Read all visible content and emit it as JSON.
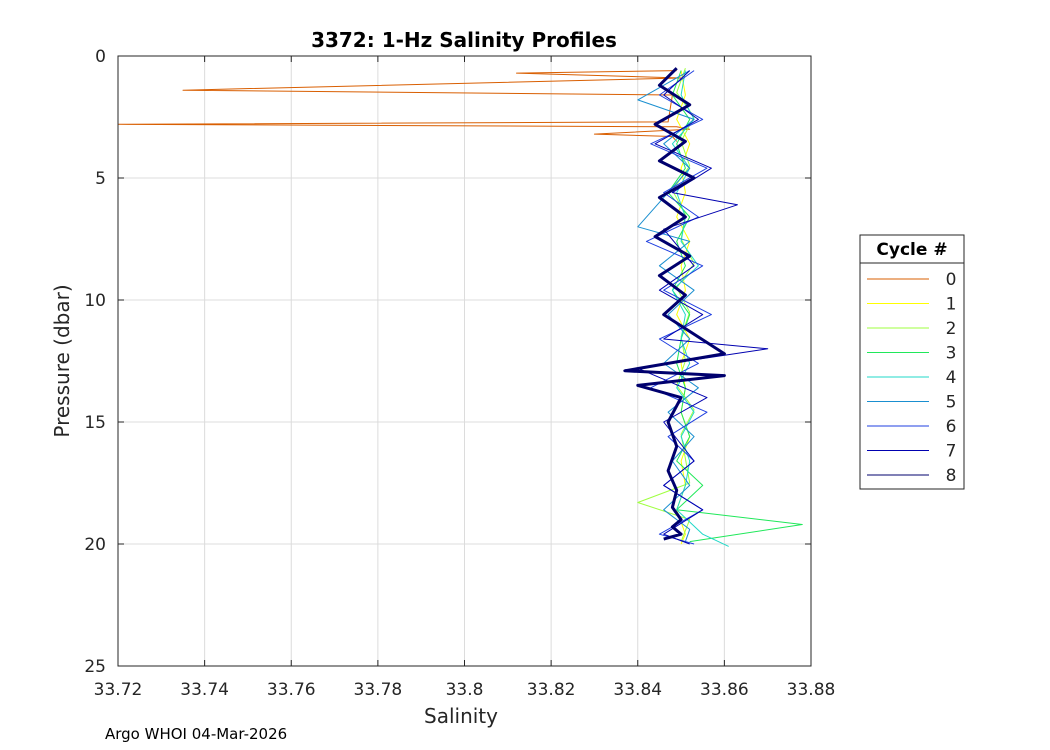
{
  "chart_data": {
    "type": "line",
    "title": "3372: 1-Hz Salinity Profiles",
    "xlabel": "Salinity",
    "ylabel": "Pressure (dbar)",
    "xlim": [
      33.72,
      33.88
    ],
    "ylim": [
      0,
      25
    ],
    "y_reversed": true,
    "grid": true,
    "x_ticks": [
      "33.72",
      "33.74",
      "33.76",
      "33.78",
      "33.8",
      "33.82",
      "33.84",
      "33.86",
      "33.88"
    ],
    "y_ticks": [
      "0",
      "5",
      "10",
      "15",
      "20",
      "25"
    ],
    "legend_title": "Cycle #",
    "legend_position": "outside-right",
    "series": [
      {
        "name": "0",
        "color": "#d95f02",
        "x": [
          33.849,
          33.812,
          33.85,
          33.735,
          33.848,
          33.847,
          33.72,
          33.849,
          33.852,
          33.83,
          33.848,
          33.849
        ],
        "y": [
          0.6,
          0.7,
          0.9,
          1.4,
          1.6,
          2.7,
          2.8,
          2.9,
          3.0,
          3.2,
          3.3,
          3.5
        ]
      },
      {
        "name": "1",
        "color": "#ffff00",
        "x": [
          33.85,
          33.851,
          33.849,
          33.852,
          33.85,
          33.851,
          33.849,
          33.852,
          33.85,
          33.851,
          33.849,
          33.852,
          33.85,
          33.851,
          33.85,
          33.852,
          33.85,
          33.851,
          33.849,
          33.851,
          33.85
        ],
        "y": [
          0.6,
          1.6,
          2.6,
          3.6,
          4.6,
          5.6,
          6.6,
          7.6,
          8.6,
          9.6,
          10.6,
          11.6,
          12.6,
          13.6,
          14.6,
          15.6,
          16.6,
          17.6,
          18.6,
          19.6,
          20.0
        ]
      },
      {
        "name": "2",
        "color": "#9fff3f",
        "x": [
          33.851,
          33.849,
          33.853,
          33.85,
          33.852,
          33.848,
          33.851,
          33.85,
          33.853,
          33.849,
          33.852,
          33.85,
          33.851,
          33.849,
          33.853,
          33.85,
          33.851,
          33.852,
          33.84,
          33.852,
          33.85
        ],
        "y": [
          0.5,
          1.5,
          2.5,
          3.5,
          4.5,
          5.5,
          6.5,
          7.5,
          8.5,
          9.5,
          10.5,
          11.5,
          12.5,
          13.5,
          14.5,
          15.5,
          16.5,
          17.5,
          18.3,
          19.0,
          19.9
        ]
      },
      {
        "name": "3",
        "color": "#20e85a",
        "x": [
          33.85,
          33.848,
          33.852,
          33.849,
          33.851,
          33.847,
          33.852,
          33.849,
          33.851,
          33.848,
          33.852,
          33.85,
          33.849,
          33.851,
          33.85,
          33.852,
          33.849,
          33.855,
          33.849,
          33.878,
          33.852
        ],
        "y": [
          0.6,
          1.6,
          2.6,
          3.6,
          4.6,
          5.6,
          6.6,
          7.6,
          8.6,
          9.6,
          10.6,
          11.6,
          12.6,
          13.6,
          14.6,
          15.6,
          16.6,
          17.6,
          18.6,
          19.2,
          19.9
        ]
      },
      {
        "name": "4",
        "color": "#20d8c8",
        "x": [
          33.851,
          33.85,
          33.853,
          33.848,
          33.852,
          33.849,
          33.851,
          33.85,
          33.854,
          33.848,
          33.851,
          33.85,
          33.852,
          33.849,
          33.853,
          33.85,
          33.852,
          33.851,
          33.849,
          33.855,
          33.861
        ],
        "y": [
          0.6,
          1.6,
          2.6,
          3.6,
          4.6,
          5.6,
          6.6,
          7.6,
          8.6,
          9.6,
          10.6,
          11.6,
          12.6,
          13.6,
          14.6,
          15.6,
          16.6,
          17.6,
          18.6,
          19.6,
          20.1
        ]
      },
      {
        "name": "5",
        "color": "#1a8fd0",
        "x": [
          33.852,
          33.84,
          33.853,
          33.846,
          33.852,
          33.847,
          33.84,
          33.852,
          33.845,
          33.853,
          33.847,
          33.852,
          33.846,
          33.854,
          33.847,
          33.853,
          33.848,
          33.852,
          33.846,
          33.852,
          33.851
        ],
        "y": [
          0.6,
          1.8,
          2.6,
          3.6,
          4.6,
          5.6,
          7.0,
          7.6,
          8.6,
          9.6,
          10.6,
          11.6,
          12.6,
          13.6,
          14.6,
          15.6,
          16.6,
          17.6,
          18.6,
          19.4,
          19.9
        ]
      },
      {
        "name": "6",
        "color": "#1f3fe0",
        "x": [
          33.853,
          33.845,
          33.855,
          33.843,
          33.856,
          33.846,
          33.854,
          33.842,
          33.855,
          33.846,
          33.857,
          33.845,
          33.854,
          33.843,
          33.856,
          33.847,
          33.853,
          33.846,
          33.855,
          33.845,
          33.853
        ],
        "y": [
          0.6,
          1.6,
          2.6,
          3.6,
          4.6,
          5.6,
          6.6,
          7.6,
          8.6,
          9.6,
          10.6,
          11.6,
          12.6,
          13.6,
          14.6,
          15.6,
          16.6,
          17.6,
          18.6,
          19.6,
          20.0
        ]
      },
      {
        "name": "7",
        "color": "#0000b0",
        "x": [
          33.852,
          33.846,
          33.854,
          33.844,
          33.857,
          33.848,
          33.863,
          33.846,
          33.853,
          33.845,
          33.855,
          33.846,
          33.87,
          33.84,
          33.856,
          33.846,
          33.853,
          33.846,
          33.855,
          33.846,
          33.852
        ],
        "y": [
          0.6,
          1.6,
          2.6,
          3.6,
          4.6,
          5.6,
          6.1,
          7.1,
          8.6,
          9.6,
          10.6,
          11.6,
          12.0,
          12.8,
          14.0,
          15.0,
          16.6,
          17.6,
          18.6,
          19.6,
          20.0
        ]
      },
      {
        "name": "8",
        "color": "#00006e",
        "x": [
          33.849,
          33.845,
          33.852,
          33.844,
          33.851,
          33.845,
          33.853,
          33.845,
          33.851,
          33.844,
          33.852,
          33.845,
          33.851,
          33.846,
          33.86,
          33.837,
          33.86,
          33.84,
          33.85,
          33.847,
          33.849,
          33.847,
          33.849,
          33.848,
          33.85,
          33.848,
          33.85,
          33.846
        ],
        "y": [
          0.5,
          1.2,
          2.0,
          2.8,
          3.5,
          4.3,
          5.0,
          5.8,
          6.6,
          7.4,
          8.2,
          9.0,
          9.8,
          10.6,
          12.2,
          12.9,
          13.1,
          13.5,
          14.0,
          15.0,
          16.0,
          17.0,
          17.8,
          18.5,
          19.0,
          19.3,
          19.6,
          19.8
        ]
      }
    ]
  },
  "footer": "Argo WHOI 04-Mar-2026"
}
